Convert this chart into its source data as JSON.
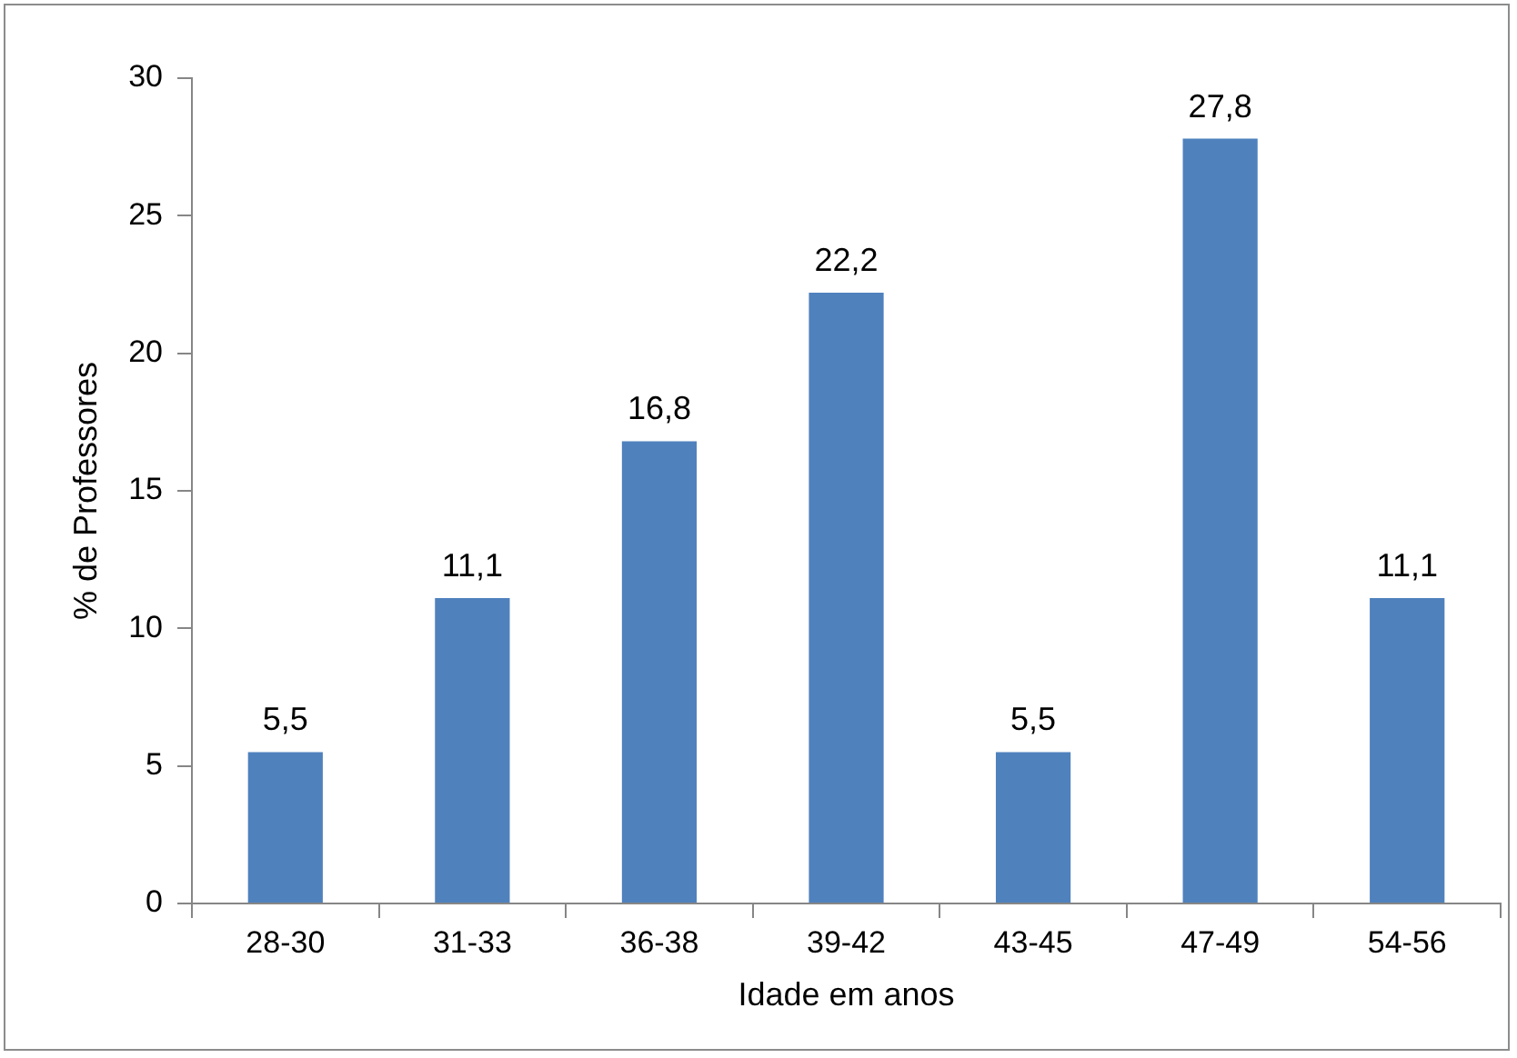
{
  "chart_data": {
    "type": "bar",
    "xlabel": "Idade em anos",
    "ylabel": "% de Professores",
    "categories": [
      "28-30",
      "31-33",
      "36-38",
      "39-42",
      "43-45",
      "47-49",
      "54-56"
    ],
    "values": [
      5.5,
      11.1,
      16.8,
      22.2,
      5.5,
      27.8,
      11.1
    ],
    "value_labels": [
      "5,5",
      "11,1",
      "16,8",
      "22,2",
      "5,5",
      "27,8",
      "11,1"
    ],
    "color": "#4f81bd",
    "ylim": [
      0,
      30
    ],
    "yticks": [
      0,
      5,
      10,
      15,
      20,
      25,
      30
    ],
    "grid": false,
    "legend": false
  }
}
